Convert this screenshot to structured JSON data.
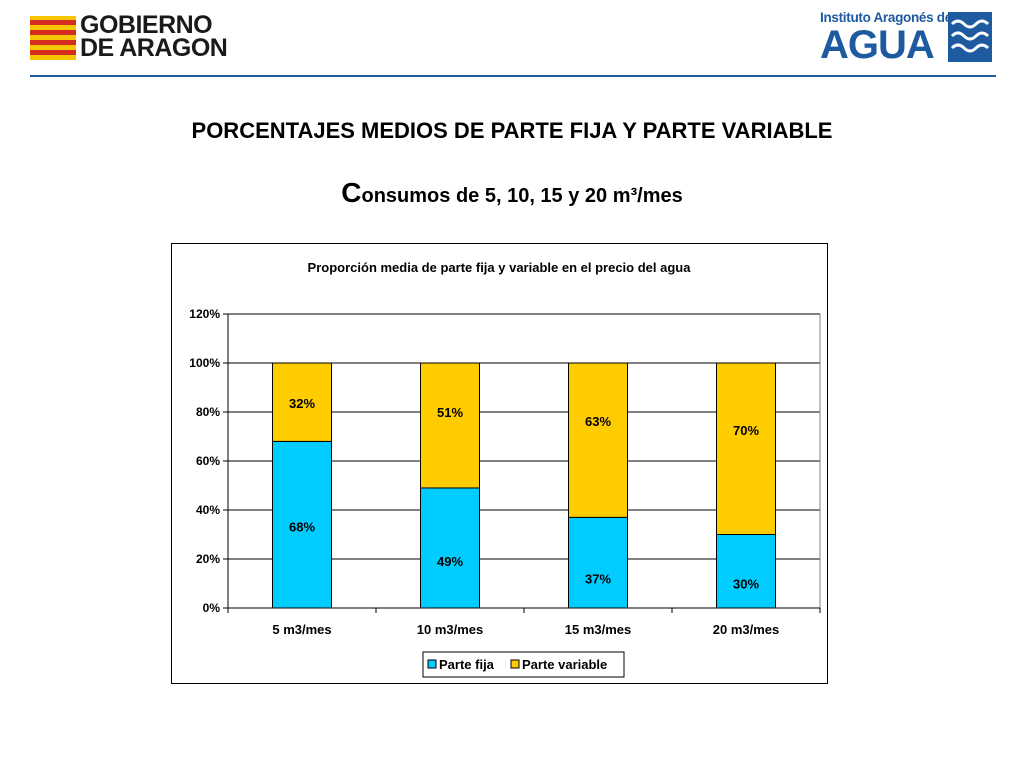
{
  "header": {
    "left_logo_lines": [
      "GOBIERNO",
      "DE ARAGON"
    ],
    "right_logo_top": "Instituto Aragonés del",
    "right_logo_main": "AGUA",
    "accent_color": "#1d5aa0"
  },
  "title": "PORCENTAJES MEDIOS DE PARTE FIJA Y PARTE VARIABLE",
  "subtitle_first_letter": "C",
  "subtitle_rest": "onsumos de 5, 10, 15 y 20 m³/mes",
  "chart_data": {
    "type": "bar",
    "stacked": true,
    "title": "Proporción media de parte fija y variable en el precio del agua",
    "categories": [
      "5 m3/mes",
      "10 m3/mes",
      "15 m3/mes",
      "20 m3/mes"
    ],
    "series": [
      {
        "name": "Parte fija",
        "values": [
          68,
          49,
          37,
          30
        ],
        "labels": [
          "68%",
          "49%",
          "37%",
          "30%"
        ],
        "color": "#00ccff"
      },
      {
        "name": "Parte variable",
        "values": [
          32,
          51,
          63,
          70
        ],
        "labels": [
          "32%",
          "51%",
          "63%",
          "70%"
        ],
        "color": "#ffcc00"
      }
    ],
    "ylim": [
      0,
      120
    ],
    "yticks": [
      0,
      20,
      40,
      60,
      80,
      100,
      120
    ],
    "ytick_labels": [
      "0%",
      "20%",
      "40%",
      "60%",
      "80%",
      "100%",
      "120%"
    ],
    "grid": true,
    "legend": "bottom"
  }
}
